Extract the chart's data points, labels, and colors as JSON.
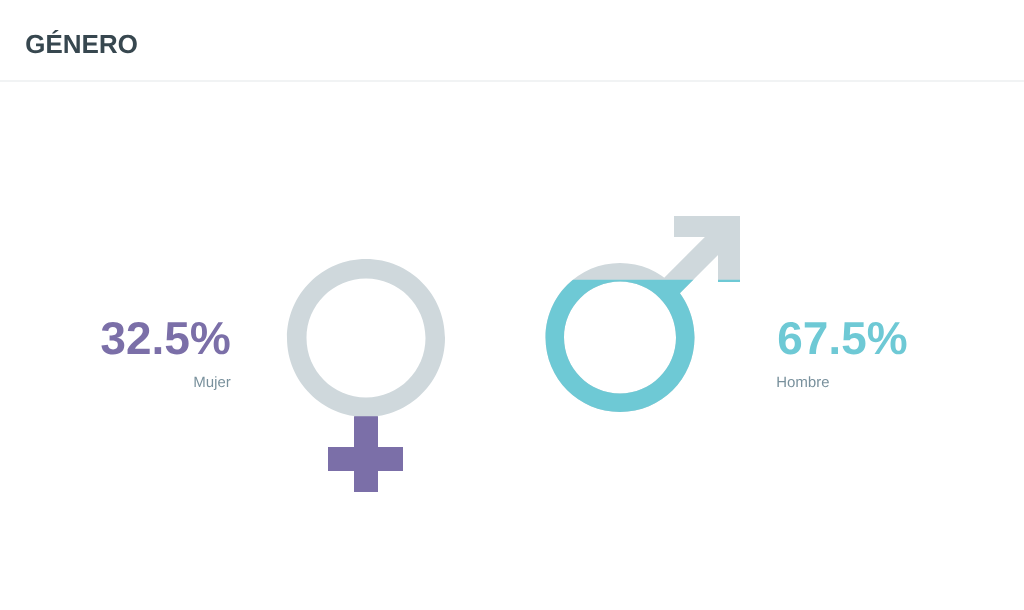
{
  "chart_data": {
    "type": "other",
    "title": "GÉNERO",
    "categories": [
      "Mujer",
      "Hombre"
    ],
    "values": [
      32.5,
      67.5
    ],
    "value_labels": [
      "32.5%",
      "67.5%"
    ],
    "colors": [
      "#7b6fa8",
      "#6ec9d5"
    ]
  }
}
